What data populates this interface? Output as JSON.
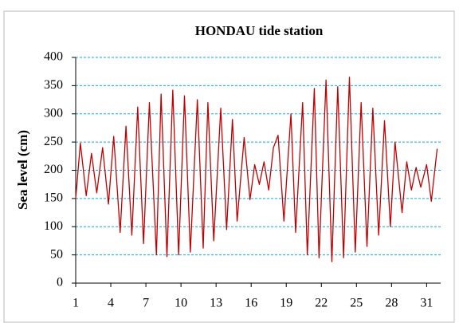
{
  "chart_data": {
    "type": "line",
    "title": "HONDAU tide station",
    "y_label": "Sea level (cm)",
    "x": [
      1.0,
      1.4,
      1.9,
      2.35,
      2.8,
      3.3,
      3.8,
      4.25,
      4.8,
      5.3,
      5.8,
      6.3,
      6.8,
      7.3,
      7.9,
      8.3,
      8.8,
      9.3,
      9.8,
      10.3,
      10.8,
      11.4,
      11.9,
      12.3,
      12.8,
      13.4,
      13.9,
      14.4,
      14.8,
      15.4,
      15.9,
      16.3,
      16.7,
      17.1,
      17.5,
      17.9,
      18.3,
      18.8,
      19.4,
      19.8,
      20.4,
      20.8,
      21.4,
      21.8,
      22.4,
      22.9,
      23.4,
      23.9,
      24.4,
      24.9,
      25.4,
      25.9,
      26.4,
      26.9,
      27.4,
      27.9,
      28.3,
      28.9,
      29.3,
      29.7,
      30.1,
      30.5,
      31.0,
      31.4,
      31.9
    ],
    "series": [
      {
        "name": "Sea level",
        "color": "#c00000",
        "values": [
          150,
          248,
          155,
          230,
          160,
          240,
          140,
          260,
          90,
          278,
          85,
          312,
          70,
          320,
          50,
          335,
          47,
          342,
          50,
          332,
          55,
          325,
          62,
          320,
          75,
          310,
          95,
          290,
          110,
          258,
          148,
          210,
          175,
          215,
          165,
          240,
          262,
          110,
          300,
          90,
          320,
          50,
          345,
          45,
          360,
          38,
          348,
          45,
          365,
          55,
          320,
          65,
          310,
          85,
          288,
          100,
          250,
          125,
          215,
          165,
          205,
          170,
          210,
          145,
          238
        ]
      }
    ],
    "xlim": [
      1,
      32.2
    ],
    "xticks": [
      1,
      4,
      7,
      10,
      13,
      16,
      19,
      22,
      25,
      28,
      31
    ],
    "ylim": [
      0,
      400
    ],
    "yticks": [
      0,
      50,
      100,
      150,
      200,
      250,
      300,
      350,
      400
    ],
    "grid": true
  }
}
